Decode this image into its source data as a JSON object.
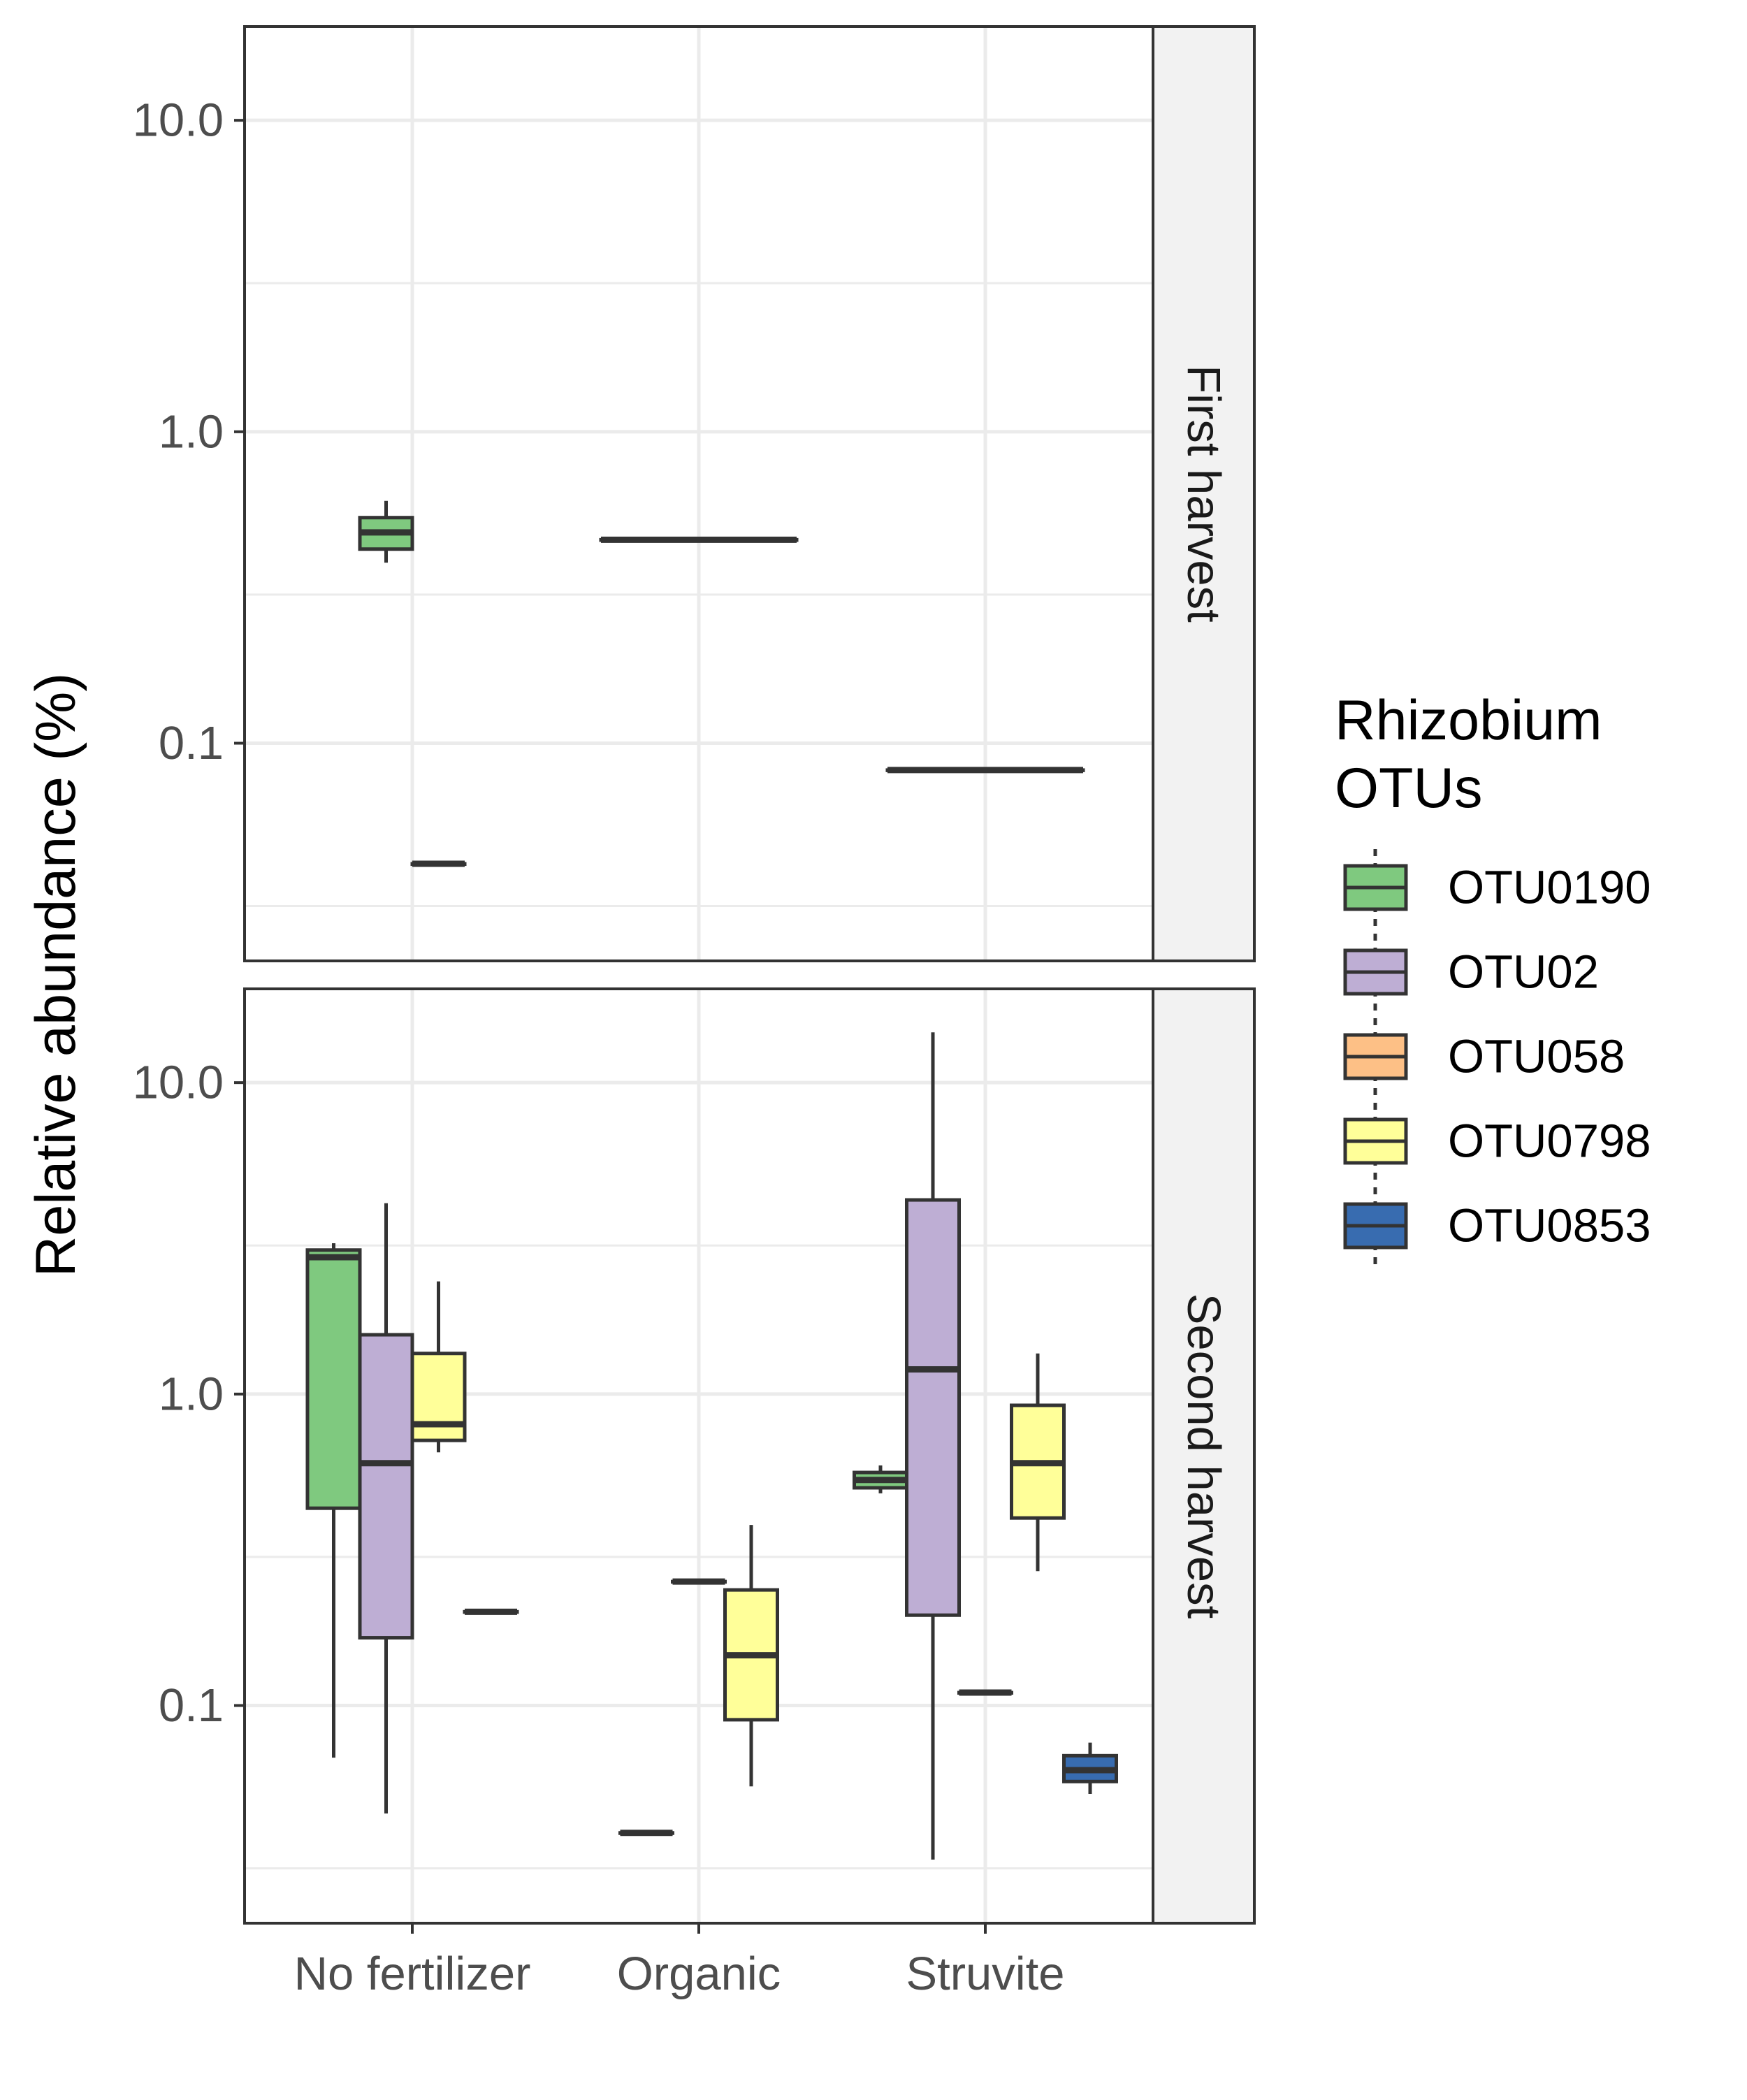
{
  "chart_data": {
    "type": "boxplot",
    "title": "",
    "xlabel": "",
    "ylabel": "Relative abundance (%)",
    "y_scale": "log10",
    "ylim": [
      0.02,
      20
    ],
    "y_ticks": [
      "0.1",
      "1.0",
      "10.0"
    ],
    "categories": [
      "No fertilizer",
      "Organic",
      "Struvite"
    ],
    "legend": {
      "title_lines": [
        "Rhizobium",
        "OTUs"
      ],
      "position": "right",
      "entries": [
        {
          "name": "OTU0190",
          "color": "#7fc97f"
        },
        {
          "name": "OTU02",
          "color": "#beaed4"
        },
        {
          "name": "OTU058",
          "color": "#fdc086"
        },
        {
          "name": "OTU0798",
          "color": "#ffff99"
        },
        {
          "name": "OTU0853",
          "color": "#386cb0"
        }
      ]
    },
    "grid": true,
    "panels": [
      {
        "strip": "First harvest",
        "boxes": [
          {
            "category": "No fertilizer",
            "series": "OTU0190",
            "min": 0.38,
            "q1": 0.42,
            "median": 0.475,
            "q3": 0.53,
            "max": 0.6
          },
          {
            "category": "No fertilizer",
            "series": "OTU02",
            "min": 0.041,
            "q1": 0.041,
            "median": 0.041,
            "q3": 0.041,
            "max": 0.041
          },
          {
            "category": "Organic",
            "series": "OTU0190",
            "min": 0.45,
            "q1": 0.45,
            "median": 0.45,
            "q3": 0.45,
            "max": 0.45
          },
          {
            "category": "Struvite",
            "series": "OTU0190",
            "min": 0.082,
            "q1": 0.082,
            "median": 0.082,
            "q3": 0.082,
            "max": 0.082
          }
        ]
      },
      {
        "strip": "Second harvest",
        "boxes": [
          {
            "category": "No fertilizer",
            "series": "OTU0190",
            "min": 0.068,
            "q1": 0.43,
            "median": 2.75,
            "q3": 2.9,
            "max": 3.05
          },
          {
            "category": "No fertilizer",
            "series": "OTU02",
            "min": 0.045,
            "q1": 0.165,
            "median": 0.6,
            "q3": 1.55,
            "max": 4.1
          },
          {
            "category": "No fertilizer",
            "series": "OTU0798",
            "min": 0.65,
            "q1": 0.71,
            "median": 0.8,
            "q3": 1.35,
            "max": 2.3
          },
          {
            "category": "No fertilizer",
            "series": "OTU0853",
            "min": 0.2,
            "q1": 0.2,
            "median": 0.2,
            "q3": 0.2,
            "max": 0.2
          },
          {
            "category": "Organic",
            "series": "OTU0190",
            "min": 0.039,
            "q1": 0.039,
            "median": 0.039,
            "q3": 0.039,
            "max": 0.039
          },
          {
            "category": "Organic",
            "series": "OTU02",
            "min": 0.25,
            "q1": 0.25,
            "median": 0.25,
            "q3": 0.25,
            "max": 0.25
          },
          {
            "category": "Organic",
            "series": "OTU0798",
            "min": 0.055,
            "q1": 0.09,
            "median": 0.145,
            "q3": 0.235,
            "max": 0.38
          },
          {
            "category": "Struvite",
            "series": "OTU0190",
            "min": 0.48,
            "q1": 0.5,
            "median": 0.53,
            "q3": 0.56,
            "max": 0.59
          },
          {
            "category": "Struvite",
            "series": "OTU02",
            "min": 0.032,
            "q1": 0.195,
            "median": 1.2,
            "q3": 4.2,
            "max": 14.5
          },
          {
            "category": "Struvite",
            "series": "OTU058",
            "min": 0.11,
            "q1": 0.11,
            "median": 0.11,
            "q3": 0.11,
            "max": 0.11
          },
          {
            "category": "Struvite",
            "series": "OTU0798",
            "min": 0.27,
            "q1": 0.4,
            "median": 0.6,
            "q3": 0.92,
            "max": 1.35
          },
          {
            "category": "Struvite",
            "series": "OTU0853",
            "min": 0.052,
            "q1": 0.057,
            "median": 0.062,
            "q3": 0.069,
            "max": 0.076
          }
        ]
      }
    ]
  }
}
